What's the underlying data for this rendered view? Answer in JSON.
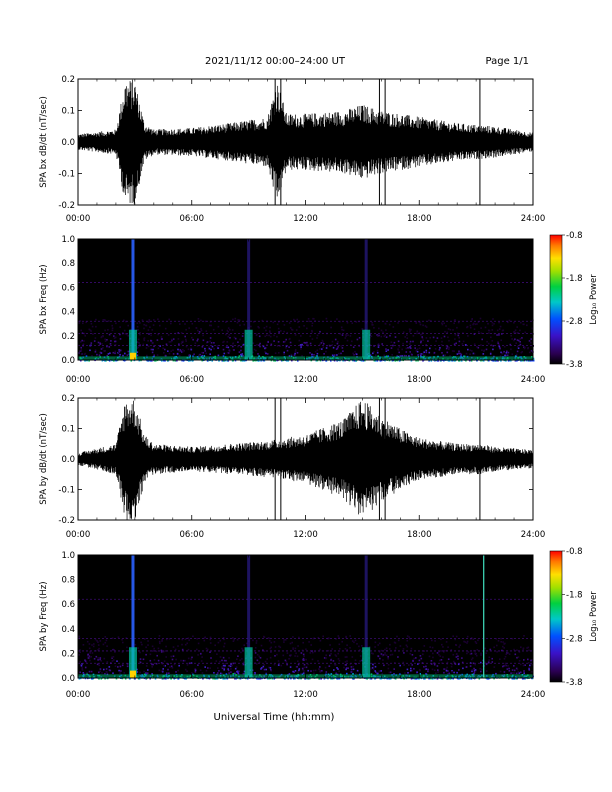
{
  "header": {
    "title": "2021/11/12  00:00–24:00 UT",
    "page": "Page 1/1"
  },
  "chart_data": [
    {
      "type": "line",
      "ylabel": "SPA bx dB/dt (nT/sec)",
      "xlim": [
        0,
        24
      ],
      "ylim": [
        -0.2,
        0.2
      ],
      "xticks": [
        "00:00",
        "06:00",
        "12:00",
        "18:00",
        "24:00"
      ],
      "yticks": [
        "0.2",
        "0.1",
        "0.0",
        "-0.1",
        "-0.2"
      ],
      "envelope_hours": [
        0,
        2,
        2.5,
        3,
        3.5,
        4,
        6,
        8,
        10,
        10.5,
        11,
        12,
        14,
        15,
        15.5,
        16,
        18,
        20,
        22,
        24
      ],
      "envelope_amplitude": [
        0.025,
        0.04,
        0.2,
        0.2,
        0.06,
        0.04,
        0.045,
        0.06,
        0.08,
        0.2,
        0.09,
        0.09,
        0.1,
        0.12,
        0.11,
        0.1,
        0.08,
        0.06,
        0.05,
        0.03
      ],
      "color": "#000000"
    },
    {
      "type": "heatmap",
      "ylabel": "SPA bx Freq (Hz)",
      "xlim": [
        0,
        24
      ],
      "ylim": [
        0.0,
        1.0
      ],
      "xticks": [
        "00:00",
        "06:00",
        "12:00",
        "18:00",
        "24:00"
      ],
      "yticks": [
        "1.0",
        "0.8",
        "0.6",
        "0.4",
        "0.2",
        "0.0"
      ],
      "colorbar": {
        "label": "Log₁₀ Power",
        "ticks": [
          "-0.8",
          "-1.8",
          "-2.8",
          "-3.8"
        ],
        "range": [
          -3.8,
          -0.8
        ]
      },
      "bursts_hours": [
        2.9,
        9.0,
        15.2
      ],
      "line_hours": []
    },
    {
      "type": "line",
      "ylabel": "SPA by dB/dt (nT/sec)",
      "xlim": [
        0,
        24
      ],
      "ylim": [
        -0.2,
        0.2
      ],
      "xticks": [
        "00:00",
        "06:00",
        "12:00",
        "18:00",
        "24:00"
      ],
      "yticks": [
        "0.2",
        "0.1",
        "0.0",
        "-0.1",
        "-0.2"
      ],
      "envelope_hours": [
        0,
        2,
        2.5,
        3,
        3.5,
        4,
        6,
        8,
        10,
        12,
        14,
        15,
        15.5,
        16,
        17,
        18,
        20,
        21.2,
        22,
        24
      ],
      "envelope_amplitude": [
        0.02,
        0.05,
        0.2,
        0.2,
        0.08,
        0.05,
        0.04,
        0.05,
        0.06,
        0.08,
        0.13,
        0.2,
        0.17,
        0.14,
        0.1,
        0.07,
        0.05,
        0.05,
        0.04,
        0.03
      ],
      "color": "#000000"
    },
    {
      "type": "heatmap",
      "ylabel": "SPA by Freq (Hz)",
      "xlim": [
        0,
        24
      ],
      "ylim": [
        0.0,
        1.0
      ],
      "xticks": [
        "00:00",
        "06:00",
        "12:00",
        "18:00",
        "24:00"
      ],
      "yticks": [
        "1.0",
        "0.8",
        "0.6",
        "0.4",
        "0.2",
        "0.0"
      ],
      "colorbar": {
        "label": "Log₁₀ Power",
        "ticks": [
          "-0.8",
          "-1.8",
          "-2.8",
          "-3.8"
        ],
        "range": [
          -3.8,
          -0.8
        ]
      },
      "bursts_hours": [
        2.9,
        9.0,
        15.2
      ],
      "line_hours": [
        21.4
      ]
    }
  ],
  "footer": {
    "xlabel": "Universal Time (hh:mm)"
  }
}
